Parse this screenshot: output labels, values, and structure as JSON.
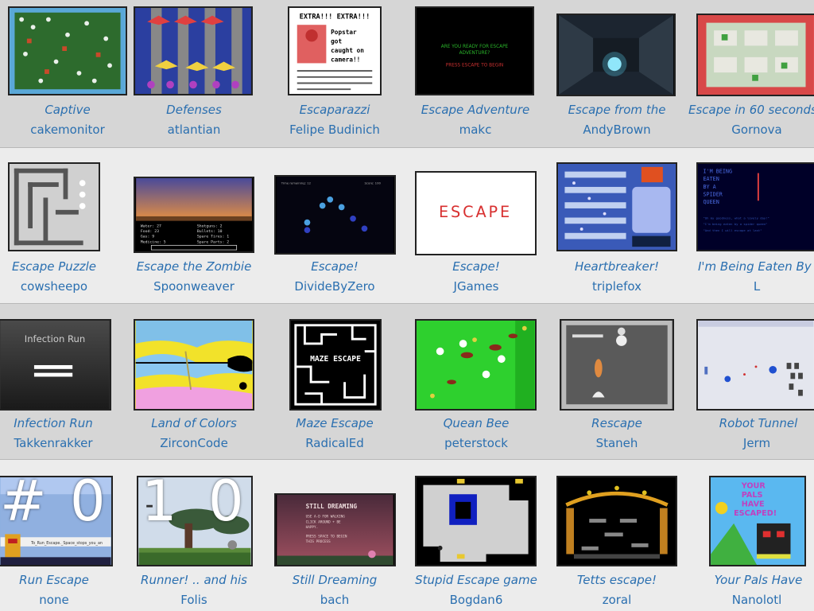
{
  "games": [
    {
      "title": "Captive",
      "author": "cakemonitor"
    },
    {
      "title": "Defenses",
      "author": "atlantian"
    },
    {
      "title": "Escaparazzi",
      "author": "Felipe Budinich"
    },
    {
      "title": "Escape Adventure",
      "author": "makc"
    },
    {
      "title": "Escape from the",
      "author": "AndyBrown"
    },
    {
      "title": "Escape in 60 seconds",
      "author": "Gornova"
    },
    {
      "title": "Escape Puzzle",
      "author": "cowsheepo"
    },
    {
      "title": "Escape the Zombie",
      "author": "Spoonweaver"
    },
    {
      "title": "Escape!",
      "author": "DivideByZero"
    },
    {
      "title": "Escape!",
      "author": "JGames"
    },
    {
      "title": "Heartbreaker!",
      "author": "triplefox"
    },
    {
      "title": "I'm Being Eaten By A",
      "author": "L"
    },
    {
      "title": "Infection Run",
      "author": "Takkenrakker"
    },
    {
      "title": "Land of Colors",
      "author": "ZirconCode"
    },
    {
      "title": "Maze Escape",
      "author": "RadicalEd"
    },
    {
      "title": "Quean Bee",
      "author": "peterstock"
    },
    {
      "title": "Rescape",
      "author": "Staneh"
    },
    {
      "title": "Robot Tunnel",
      "author": "Jerm"
    },
    {
      "title": "Run Escape",
      "author": "none"
    },
    {
      "title": "Runner! .. and his",
      "author": "Folis"
    },
    {
      "title": "Still Dreaming",
      "author": "bach"
    },
    {
      "title": "Stupid Escape game",
      "author": "Bogdan6"
    },
    {
      "title": "Tetts escape!",
      "author": "zoral"
    },
    {
      "title": "Your Pals Have",
      "author": "Nanolotl"
    }
  ],
  "thumb_text": {
    "escaparazzi_headline": "EXTRA!!! EXTRA!!!",
    "escaparazzi_story": "Popstar got caught on camera!!",
    "adventure_line1": "ARE YOU READY FOR ESCAPE",
    "adventure_line2": "ADVENTURE?",
    "adventure_line3": "PRESS ESCAPE TO BEGIN",
    "escape_logo": "ESCAPE",
    "infection_title": "Infection Run",
    "maze_title": "MAZE ESCAPE",
    "dreaming_title": "STILL DREAMING",
    "pals_text": "YOUR PALS HAVE ESCAPED!"
  },
  "overlay": {
    "hash": "#",
    "digit1": "0",
    "digit2": "1",
    "digit3": "0"
  },
  "colors": {
    "link": "#2a6fb0",
    "band_dark": "#d6d6d6",
    "band_light": "#ececec"
  }
}
